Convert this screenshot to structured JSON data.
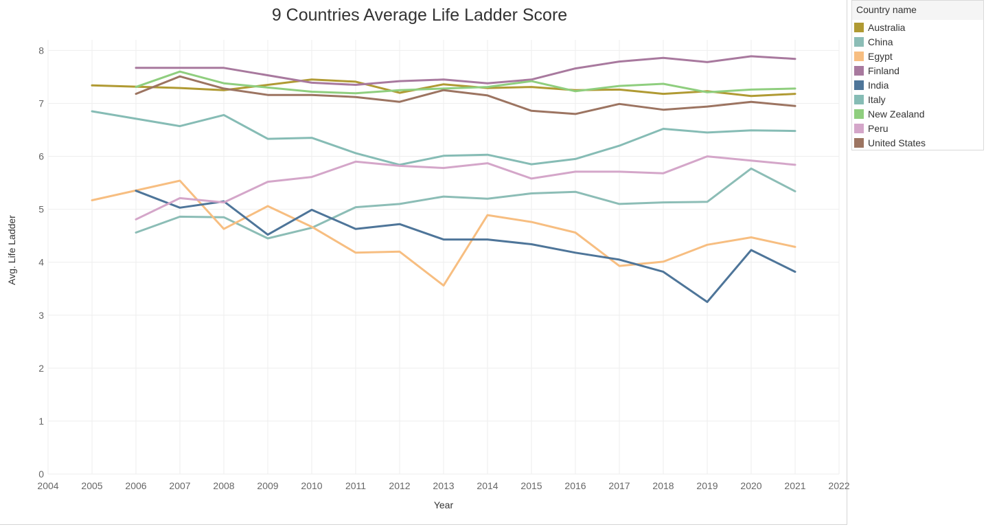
{
  "chart_data": {
    "type": "line",
    "title": "9 Countries Average Life Ladder Score",
    "xlabel": "Year",
    "ylabel": "Avg. Life Ladder",
    "x_ticks": [
      2004,
      2005,
      2006,
      2007,
      2008,
      2009,
      2010,
      2011,
      2012,
      2013,
      2014,
      2015,
      2016,
      2017,
      2018,
      2019,
      2020,
      2021,
      2022
    ],
    "y_ticks": [
      0,
      1,
      2,
      3,
      4,
      5,
      6,
      7,
      8
    ],
    "xlim": [
      2004,
      2022
    ],
    "ylim": [
      0,
      8.2
    ],
    "grid": true,
    "legend_position": "right",
    "legend_title": "Country name",
    "series": [
      {
        "name": "Australia",
        "color": "#b09a33",
        "x": [
          2005,
          2007,
          2008,
          2010,
          2011,
          2012,
          2013,
          2014,
          2015,
          2016,
          2017,
          2018,
          2019,
          2020,
          2021
        ],
        "y": [
          7.34,
          7.29,
          7.25,
          7.45,
          7.41,
          7.2,
          7.36,
          7.29,
          7.31,
          7.25,
          7.26,
          7.18,
          7.23,
          7.14,
          7.18
        ]
      },
      {
        "name": "China",
        "color": "#8cbdb6",
        "x": [
          2006,
          2007,
          2008,
          2009,
          2010,
          2011,
          2012,
          2013,
          2014,
          2015,
          2016,
          2017,
          2018,
          2019,
          2020,
          2021
        ],
        "y": [
          4.56,
          4.86,
          4.85,
          4.45,
          4.65,
          5.04,
          5.1,
          5.24,
          5.2,
          5.3,
          5.33,
          5.1,
          5.13,
          5.14,
          5.77,
          5.34
        ]
      },
      {
        "name": "Egypt",
        "color": "#f7be81",
        "x": [
          2005,
          2007,
          2008,
          2009,
          2010,
          2011,
          2012,
          2013,
          2014,
          2015,
          2016,
          2017,
          2018,
          2019,
          2020,
          2021
        ],
        "y": [
          5.17,
          5.54,
          4.63,
          5.06,
          4.67,
          4.18,
          4.2,
          3.56,
          4.89,
          4.76,
          4.56,
          3.93,
          4.01,
          4.33,
          4.47,
          4.29
        ]
      },
      {
        "name": "Finland",
        "color": "#a8799e",
        "x": [
          2006,
          2008,
          2010,
          2011,
          2012,
          2013,
          2014,
          2015,
          2016,
          2017,
          2018,
          2019,
          2020,
          2021
        ],
        "y": [
          7.67,
          7.67,
          7.39,
          7.35,
          7.42,
          7.45,
          7.38,
          7.45,
          7.66,
          7.79,
          7.86,
          7.78,
          7.89,
          7.84
        ]
      },
      {
        "name": "India",
        "color": "#4e7599",
        "x": [
          2006,
          2007,
          2008,
          2009,
          2010,
          2011,
          2012,
          2013,
          2014,
          2015,
          2016,
          2017,
          2018,
          2019,
          2020,
          2021
        ],
        "y": [
          5.35,
          5.03,
          5.15,
          4.52,
          4.99,
          4.63,
          4.72,
          4.43,
          4.43,
          4.34,
          4.18,
          4.05,
          3.82,
          3.25,
          4.23,
          3.82
        ]
      },
      {
        "name": "Italy",
        "color": "#86bcb5",
        "x": [
          2005,
          2007,
          2008,
          2009,
          2010,
          2011,
          2012,
          2013,
          2014,
          2015,
          2016,
          2017,
          2018,
          2019,
          2020,
          2021
        ],
        "y": [
          6.85,
          6.57,
          6.78,
          6.33,
          6.35,
          6.06,
          5.84,
          6.01,
          6.03,
          5.85,
          5.95,
          6.2,
          6.52,
          6.45,
          6.49,
          6.48
        ]
      },
      {
        "name": "New Zealand",
        "color": "#8fce7e",
        "x": [
          2006,
          2007,
          2008,
          2009,
          2010,
          2011,
          2012,
          2013,
          2014,
          2015,
          2016,
          2017,
          2018,
          2019,
          2020,
          2021
        ],
        "y": [
          7.31,
          7.6,
          7.38,
          7.3,
          7.22,
          7.19,
          7.25,
          7.28,
          7.31,
          7.42,
          7.23,
          7.33,
          7.37,
          7.21,
          7.26,
          7.28
        ]
      },
      {
        "name": "Peru",
        "color": "#d4a6c9",
        "x": [
          2006,
          2007,
          2008,
          2009,
          2010,
          2011,
          2012,
          2013,
          2014,
          2015,
          2016,
          2017,
          2018,
          2019,
          2020,
          2021
        ],
        "y": [
          4.81,
          5.21,
          5.13,
          5.52,
          5.61,
          5.9,
          5.82,
          5.78,
          5.87,
          5.58,
          5.71,
          5.71,
          5.68,
          6.0,
          5.92,
          5.84
        ]
      },
      {
        "name": "United States",
        "color": "#9c7461",
        "x": [
          2006,
          2007,
          2008,
          2009,
          2010,
          2011,
          2012,
          2013,
          2014,
          2015,
          2016,
          2017,
          2018,
          2019,
          2020,
          2021
        ],
        "y": [
          7.18,
          7.51,
          7.28,
          7.16,
          7.16,
          7.12,
          7.03,
          7.25,
          7.15,
          6.86,
          6.8,
          6.99,
          6.88,
          6.94,
          7.03,
          6.95
        ]
      }
    ]
  }
}
